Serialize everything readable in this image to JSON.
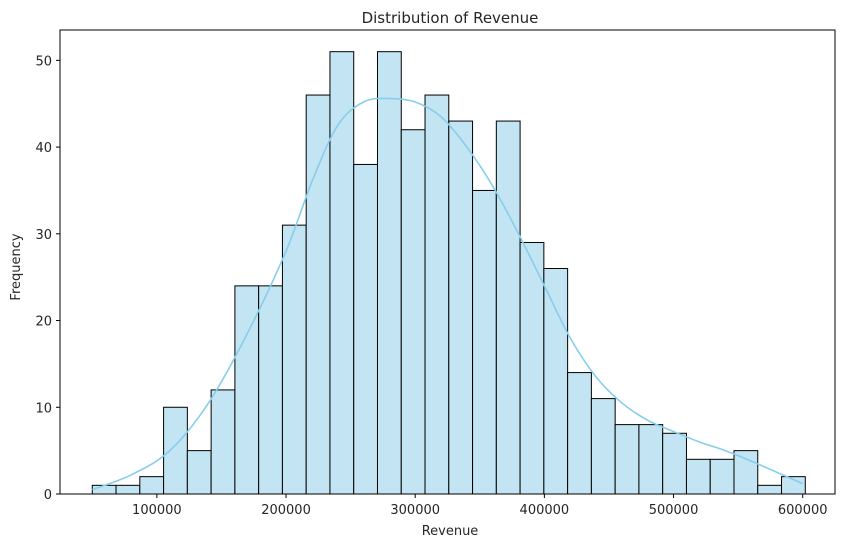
{
  "chart_data": {
    "type": "bar",
    "title": "Distribution of Revenue",
    "xlabel": "Revenue",
    "ylabel": "Frequency",
    "bin_start": 50000,
    "bin_width": 18400,
    "values": [
      1,
      1,
      2,
      10,
      5,
      12,
      24,
      24,
      31,
      46,
      51,
      38,
      51,
      42,
      46,
      43,
      35,
      43,
      29,
      26,
      14,
      11,
      8,
      8,
      7,
      4,
      4,
      5,
      1,
      2
    ],
    "kde": [
      [
        50000,
        0.5
      ],
      [
        80000,
        2.2
      ],
      [
        110000,
        5.0
      ],
      [
        140000,
        10.5
      ],
      [
        170000,
        18.5
      ],
      [
        200000,
        28.0
      ],
      [
        220000,
        36.0
      ],
      [
        240000,
        42.5
      ],
      [
        260000,
        45.2
      ],
      [
        280000,
        45.6
      ],
      [
        300000,
        45.2
      ],
      [
        320000,
        43.5
      ],
      [
        340000,
        40.0
      ],
      [
        360000,
        35.5
      ],
      [
        380000,
        30.0
      ],
      [
        400000,
        24.0
      ],
      [
        420000,
        18.0
      ],
      [
        440000,
        13.5
      ],
      [
        460000,
        10.5
      ],
      [
        480000,
        8.5
      ],
      [
        500000,
        7.2
      ],
      [
        520000,
        6.0
      ],
      [
        540000,
        5.0
      ],
      [
        560000,
        3.8
      ],
      [
        580000,
        2.5
      ],
      [
        600000,
        1.2
      ]
    ],
    "xlim": [
      25000,
      625000
    ],
    "ylim": [
      0,
      53.5
    ],
    "xticks": [
      100000,
      200000,
      300000,
      400000,
      500000,
      600000
    ],
    "yticks": [
      0,
      10,
      20,
      30,
      40,
      50
    ],
    "bar_color": "#c3e4f3",
    "bar_edge_color": "#000000",
    "kde_color": "#87ceeb",
    "grid": false
  }
}
